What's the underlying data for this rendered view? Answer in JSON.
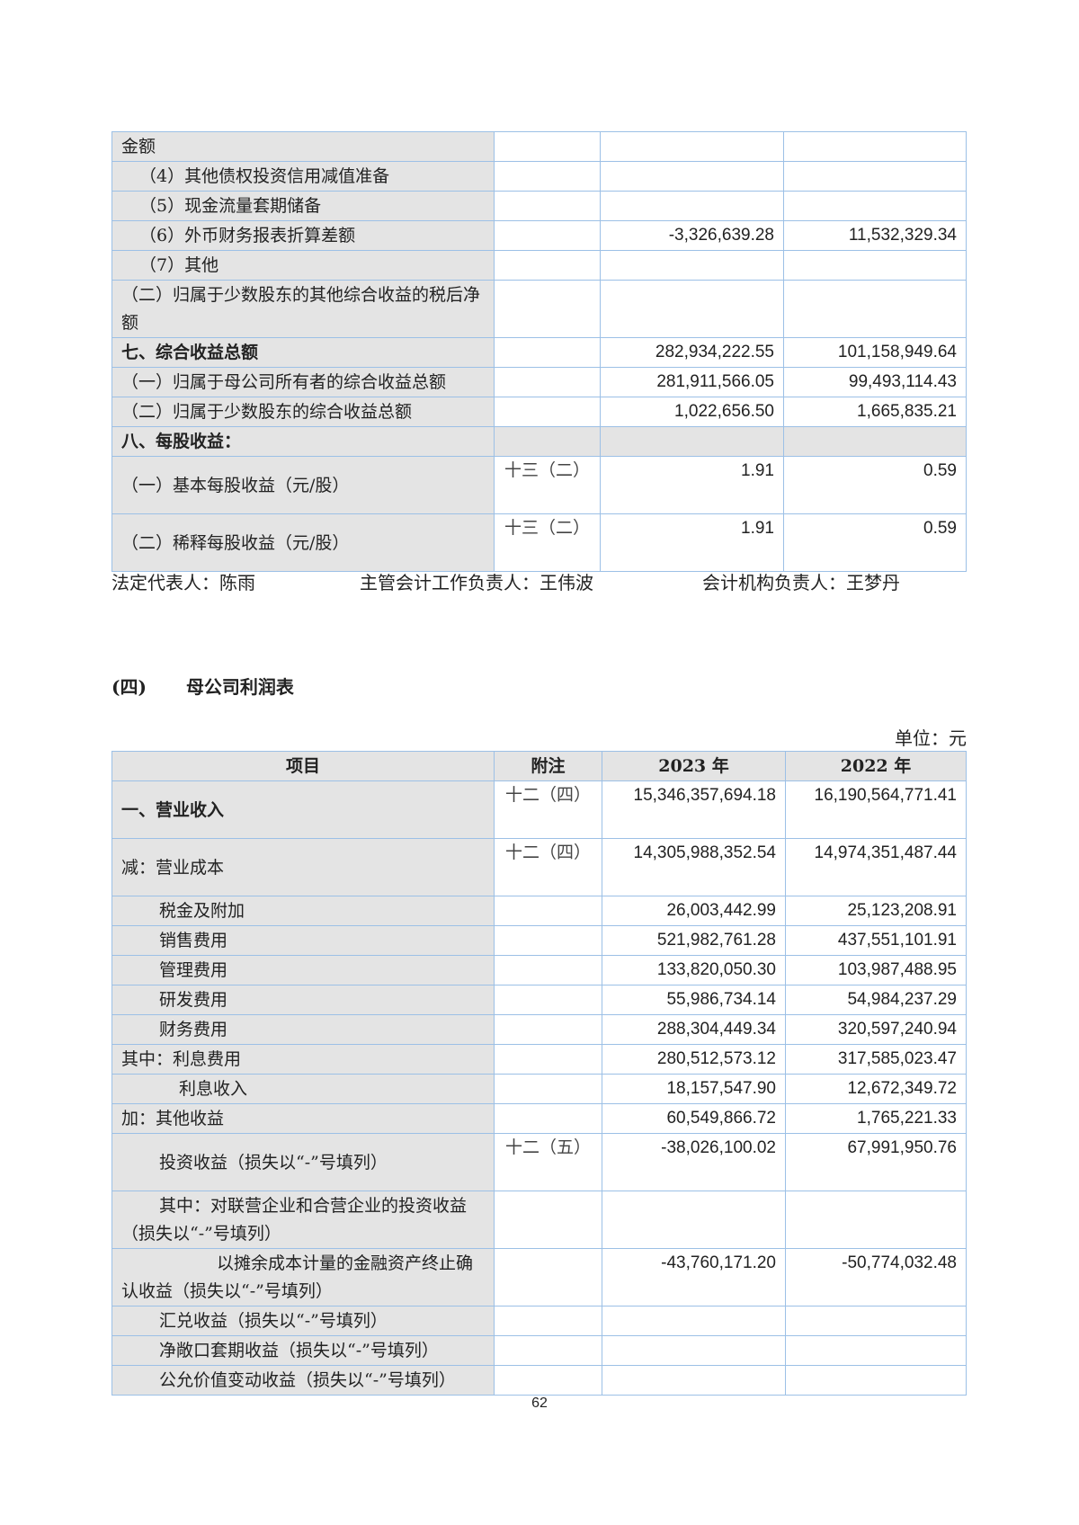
{
  "table1": {
    "rows": [
      {
        "label": "金额",
        "note": "",
        "y2023": "",
        "y2022": "",
        "style": "lv0",
        "lines": 1
      },
      {
        "label": "（4）其他债权投资信用减值准备",
        "note": "",
        "y2023": "",
        "y2022": "",
        "style": "lv1s",
        "lines": 1
      },
      {
        "label": "（5）现金流量套期储备",
        "note": "",
        "y2023": "",
        "y2022": "",
        "style": "lv1s",
        "lines": 1
      },
      {
        "label": "（6）外币财务报表折算差额",
        "note": "",
        "y2023": "-3,326,639.28",
        "y2022": "11,532,329.34",
        "style": "lv1s",
        "lines": 1
      },
      {
        "label": "（7）其他",
        "note": "",
        "y2023": "",
        "y2022": "",
        "style": "lv1s",
        "lines": 1
      },
      {
        "label": "（二）归属于少数股东的其他综合收益的税后净额",
        "note": "",
        "y2023": "",
        "y2022": "",
        "style": "lv0",
        "lines": 2
      },
      {
        "label": "七、综合收益总额",
        "note": "",
        "y2023": "282,934,222.55",
        "y2022": "101,158,949.64",
        "style": "bold",
        "lines": 1
      },
      {
        "label": "（一）归属于母公司所有者的综合收益总额",
        "note": "",
        "y2023": "281,911,566.05",
        "y2022": "99,493,114.43",
        "style": "lv0",
        "lines": 1
      },
      {
        "label": "（二）归属于少数股东的综合收益总额",
        "note": "",
        "y2023": "1,022,656.50",
        "y2022": "1,665,835.21",
        "style": "lv0",
        "lines": 1
      },
      {
        "label": "八、每股收益：",
        "note": "",
        "y2023": "",
        "y2022": "",
        "style": "bold-shade",
        "lines": 1
      },
      {
        "label": "（一）基本每股收益（元/股）",
        "note": "十三（二）",
        "y2023": "1.91",
        "y2022": "0.59",
        "style": "lv0",
        "lines": 2
      },
      {
        "label": "（二）稀释每股收益（元/股）",
        "note": "十三（二）",
        "y2023": "1.91",
        "y2022": "0.59",
        "style": "lv0",
        "lines": 2
      }
    ]
  },
  "signatures": {
    "legal_rep": "法定代表人：陈雨",
    "accounting_head": "主管会计工作负责人：王伟波",
    "accounting_org_head": "会计机构负责人：王梦丹"
  },
  "section": {
    "number": "(四)",
    "title": "母公司利润表"
  },
  "unit": "单位：元",
  "table2": {
    "headers": {
      "item": "项目",
      "note": "附注",
      "y2023": "2023 年",
      "y2022": "2022 年"
    },
    "rows": [
      {
        "label": "一、营业收入",
        "note": "十二（四）",
        "y2023": "15,346,357,694.18",
        "y2022": "16,190,564,771.41",
        "style": "bold",
        "lines": 2
      },
      {
        "label": "减：营业成本",
        "note": "十二（四）",
        "y2023": "14,305,988,352.54",
        "y2022": "14,974,351,487.44",
        "style": "lv0",
        "lines": 2
      },
      {
        "label": "税金及附加",
        "note": "",
        "y2023": "26,003,442.99",
        "y2022": "25,123,208.91",
        "style": "lv1",
        "lines": 1
      },
      {
        "label": "销售费用",
        "note": "",
        "y2023": "521,982,761.28",
        "y2022": "437,551,101.91",
        "style": "lv1",
        "lines": 1
      },
      {
        "label": "管理费用",
        "note": "",
        "y2023": "133,820,050.30",
        "y2022": "103,987,488.95",
        "style": "lv1",
        "lines": 1
      },
      {
        "label": "研发费用",
        "note": "",
        "y2023": "55,986,734.14",
        "y2022": "54,984,237.29",
        "style": "lv1",
        "lines": 1
      },
      {
        "label": "财务费用",
        "note": "",
        "y2023": "288,304,449.34",
        "y2022": "320,597,240.94",
        "style": "lv1",
        "lines": 1
      },
      {
        "label": "其中：利息费用",
        "note": "",
        "y2023": "280,512,573.12",
        "y2022": "317,585,023.47",
        "style": "lv0",
        "lines": 1
      },
      {
        "label": "利息收入",
        "note": "",
        "y2023": "18,157,547.90",
        "y2022": "12,672,349.72",
        "style": "lv2",
        "lines": 1
      },
      {
        "label": "加：其他收益",
        "note": "",
        "y2023": "60,549,866.72",
        "y2022": "1,765,221.33",
        "style": "lv0",
        "lines": 1
      },
      {
        "label": "投资收益（损失以“-”号填列）",
        "note": "十二（五）",
        "y2023": "-38,026,100.02",
        "y2022": "67,991,950.76",
        "style": "lv1",
        "lines": 2
      },
      {
        "label": "其中：对联营企业和合营企业的投资收益（损失以“-”号填列）",
        "note": "",
        "y2023": "",
        "y2022": "",
        "style": "wrap1",
        "lines": 2
      },
      {
        "label": "以摊余成本计量的金融资产终止确认收益（损失以“-”号填列）",
        "note": "",
        "y2023": "-43,760,171.20",
        "y2022": "-50,774,032.48",
        "style": "wrap2",
        "lines": 2
      },
      {
        "label": "汇兑收益（损失以“-”号填列）",
        "note": "",
        "y2023": "",
        "y2022": "",
        "style": "lv1",
        "lines": 1
      },
      {
        "label": "净敞口套期收益（损失以“-”号填列）",
        "note": "",
        "y2023": "",
        "y2022": "",
        "style": "lv1",
        "lines": 1
      },
      {
        "label": "公允价值变动收益（损失以“-”号填列）",
        "note": "",
        "y2023": "",
        "y2022": "",
        "style": "lv1",
        "lines": 1
      }
    ]
  },
  "page_number": "62"
}
